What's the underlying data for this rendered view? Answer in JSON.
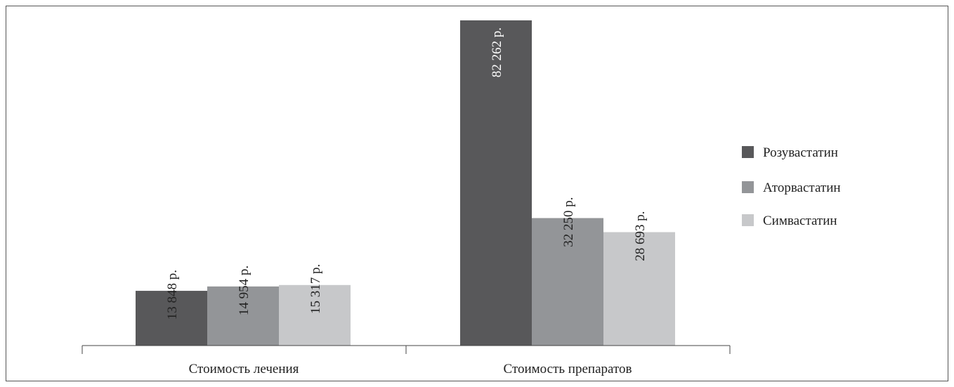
{
  "chart_data": {
    "type": "bar",
    "categories": [
      "Стоимость лечения",
      "Стоимость препаратов"
    ],
    "series": [
      {
        "name": "Розувастатин",
        "values": [
          13848,
          82262
        ],
        "labels": [
          "13 848 р.",
          "82 262 р."
        ],
        "color": "#58585a"
      },
      {
        "name": "Аторвастатин",
        "values": [
          14954,
          32250
        ],
        "labels": [
          "14 954 р.",
          "32 250 р."
        ],
        "color": "#939598"
      },
      {
        "name": "Симвастатин",
        "values": [
          15317,
          28693
        ],
        "labels": [
          "15 317 р.",
          "28 693 р."
        ],
        "color": "#c7c8ca"
      }
    ],
    "title": "",
    "xlabel": "",
    "ylabel": "",
    "ylim": [
      0,
      82262
    ],
    "grid": false,
    "legend_position": "right"
  }
}
